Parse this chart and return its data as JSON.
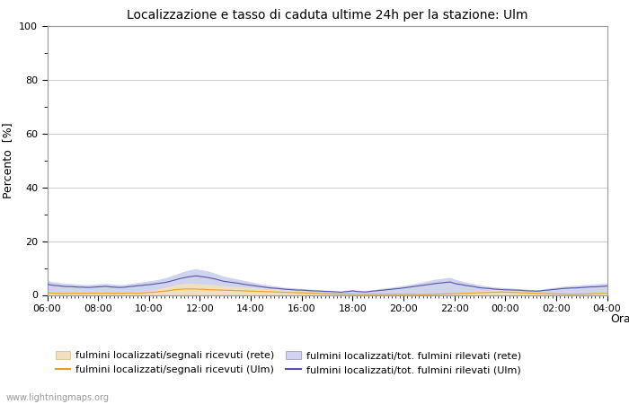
{
  "title": "Localizzazione e tasso di caduta ultime 24h per la stazione: Ulm",
  "xlabel": "Orario",
  "ylabel": "Percento  [%]",
  "ylim": [
    0,
    100
  ],
  "yticks": [
    0,
    20,
    40,
    60,
    80,
    100
  ],
  "yticks_minor": [
    10,
    30,
    50,
    70,
    90
  ],
  "x_labels": [
    "06:00",
    "08:00",
    "10:00",
    "12:00",
    "14:00",
    "16:00",
    "18:00",
    "20:00",
    "22:00",
    "00:00",
    "02:00",
    "04:00"
  ],
  "n_points": 144,
  "color_fill_rete": "#f0dfc0",
  "color_fill_rete_edge": "#d4b87a",
  "color_fill_blue": "#cfd3ee",
  "color_fill_blue_edge": "#9090cc",
  "color_line_orange": "#e8a020",
  "color_line_blue": "#5555aa",
  "background_color": "#ffffff",
  "grid_color": "#cccccc",
  "watermark": "www.lightningmaps.org",
  "legend_labels": [
    "fulmini localizzati/segnali ricevuti (rete)",
    "fulmini localizzati/segnali ricevuti (Ulm)",
    "fulmini localizzati/tot. fulmini rilevati (rete)",
    "fulmini localizzati/tot. fulmini rilevati (Ulm)"
  ],
  "fill_rete_values": [
    1.5,
    1.3,
    1.2,
    1.1,
    1.0,
    1.1,
    1.2,
    1.3,
    1.2,
    1.1,
    1.2,
    1.3,
    1.4,
    1.3,
    1.2,
    1.3,
    1.1,
    1.2,
    1.3,
    1.2,
    1.3,
    1.4,
    1.3,
    1.2,
    1.4,
    1.5,
    1.7,
    1.9,
    2.2,
    2.5,
    2.8,
    3.1,
    3.5,
    3.9,
    4.1,
    4.3,
    4.4,
    4.4,
    4.3,
    4.2,
    4.1,
    4.0,
    3.9,
    3.7,
    3.6,
    3.5,
    3.4,
    3.3,
    3.2,
    3.1,
    3.0,
    2.9,
    2.8,
    2.7,
    2.6,
    2.5,
    2.4,
    2.3,
    2.2,
    2.1,
    2.0,
    1.9,
    1.8,
    1.7,
    1.6,
    1.5,
    1.4,
    1.3,
    1.2,
    1.1,
    1.0,
    0.9,
    0.8,
    0.7,
    0.6,
    0.5,
    0.5,
    0.5,
    0.5,
    0.4,
    0.4,
    0.4,
    0.4,
    0.3,
    0.3,
    0.3,
    0.3,
    0.3,
    0.3,
    0.3,
    0.3,
    0.3,
    0.3,
    0.3,
    0.3,
    0.2,
    0.2,
    0.3,
    0.3,
    0.4,
    0.5,
    0.6,
    0.7,
    0.8,
    0.9,
    1.0,
    1.1,
    1.2,
    1.3,
    1.4,
    1.5,
    1.6,
    1.7,
    1.8,
    1.9,
    2.0,
    2.1,
    2.0,
    1.9,
    1.8,
    1.7,
    1.6,
    1.5,
    1.4,
    1.3,
    1.2,
    1.1,
    1.0,
    0.9,
    0.8,
    0.7,
    0.6,
    0.5,
    0.4,
    0.3,
    0.4,
    0.5,
    0.6,
    0.7,
    0.8,
    0.9,
    1.0,
    1.1,
    1.2
  ],
  "fill_blue_values": [
    5.5,
    5.0,
    4.8,
    4.6,
    4.4,
    4.3,
    4.2,
    4.1,
    4.0,
    3.9,
    3.8,
    3.9,
    4.0,
    4.1,
    4.2,
    4.3,
    4.1,
    4.0,
    3.9,
    3.8,
    4.0,
    4.2,
    4.4,
    4.6,
    4.8,
    5.0,
    5.2,
    5.4,
    5.7,
    6.0,
    6.3,
    6.7,
    7.2,
    7.8,
    8.3,
    8.8,
    9.2,
    9.5,
    9.7,
    9.5,
    9.2,
    8.9,
    8.5,
    8.0,
    7.5,
    7.0,
    6.7,
    6.4,
    6.1,
    5.8,
    5.5,
    5.2,
    4.9,
    4.6,
    4.3,
    4.0,
    3.8,
    3.6,
    3.4,
    3.2,
    3.0,
    2.8,
    2.7,
    2.6,
    2.5,
    2.4,
    2.3,
    2.2,
    2.1,
    2.0,
    1.9,
    1.8,
    1.7,
    1.6,
    1.5,
    1.4,
    1.6,
    1.8,
    2.0,
    1.8,
    1.6,
    1.5,
    1.7,
    1.9,
    2.1,
    2.3,
    2.5,
    2.7,
    2.9,
    3.1,
    3.3,
    3.5,
    3.8,
    4.0,
    4.3,
    4.6,
    4.9,
    5.2,
    5.5,
    5.8,
    6.0,
    6.2,
    6.4,
    6.5,
    5.9,
    5.5,
    5.1,
    4.8,
    4.5,
    4.2,
    3.9,
    3.6,
    3.4,
    3.2,
    3.0,
    2.9,
    2.8,
    2.7,
    2.6,
    2.5,
    2.4,
    2.3,
    2.2,
    2.1,
    2.0,
    1.9,
    2.1,
    2.3,
    2.5,
    2.7,
    2.9,
    3.1,
    3.3,
    3.4,
    3.5,
    3.6,
    3.7,
    3.8,
    3.9,
    4.0,
    4.1,
    4.2,
    4.3,
    4.4
  ],
  "line_orange_values": [
    0.8,
    0.7,
    0.6,
    0.6,
    0.5,
    0.6,
    0.6,
    0.7,
    0.6,
    0.6,
    0.6,
    0.7,
    0.7,
    0.7,
    0.6,
    0.7,
    0.6,
    0.6,
    0.7,
    0.6,
    0.7,
    0.7,
    0.7,
    0.6,
    0.7,
    0.8,
    0.9,
    1.0,
    1.1,
    1.3,
    1.4,
    1.6,
    1.8,
    2.0,
    2.1,
    2.2,
    2.2,
    2.2,
    2.2,
    2.1,
    2.1,
    2.0,
    1.9,
    1.9,
    1.8,
    1.8,
    1.7,
    1.7,
    1.6,
    1.6,
    1.5,
    1.5,
    1.4,
    1.4,
    1.3,
    1.3,
    1.2,
    1.2,
    1.1,
    1.1,
    1.0,
    1.0,
    0.9,
    0.9,
    0.8,
    0.8,
    0.7,
    0.7,
    0.6,
    0.6,
    0.5,
    0.5,
    0.4,
    0.4,
    0.3,
    0.3,
    0.3,
    0.3,
    0.3,
    0.2,
    0.2,
    0.2,
    0.2,
    0.2,
    0.2,
    0.2,
    0.2,
    0.2,
    0.2,
    0.2,
    0.2,
    0.2,
    0.2,
    0.2,
    0.2,
    0.1,
    0.1,
    0.2,
    0.2,
    0.2,
    0.3,
    0.3,
    0.4,
    0.4,
    0.5,
    0.5,
    0.6,
    0.6,
    0.7,
    0.7,
    0.8,
    0.8,
    0.9,
    0.9,
    1.0,
    1.0,
    1.1,
    1.0,
    1.0,
    0.9,
    0.9,
    0.8,
    0.8,
    0.7,
    0.7,
    0.6,
    0.6,
    0.5,
    0.5,
    0.4,
    0.4,
    0.3,
    0.3,
    0.2,
    0.2,
    0.2,
    0.3,
    0.3,
    0.4,
    0.4,
    0.5,
    0.5,
    0.6,
    0.6
  ],
  "line_blue_values": [
    4.0,
    3.7,
    3.5,
    3.4,
    3.2,
    3.1,
    3.1,
    3.0,
    2.9,
    2.9,
    2.8,
    2.8,
    2.9,
    3.0,
    3.1,
    3.2,
    3.0,
    2.9,
    2.8,
    2.8,
    2.9,
    3.1,
    3.2,
    3.4,
    3.5,
    3.7,
    3.8,
    4.0,
    4.2,
    4.4,
    4.6,
    4.9,
    5.3,
    5.7,
    6.1,
    6.4,
    6.7,
    6.9,
    7.1,
    6.9,
    6.7,
    6.5,
    6.2,
    5.9,
    5.5,
    5.1,
    4.9,
    4.7,
    4.5,
    4.3,
    4.0,
    3.8,
    3.6,
    3.4,
    3.2,
    3.0,
    2.8,
    2.6,
    2.5,
    2.4,
    2.2,
    2.1,
    2.0,
    1.9,
    1.8,
    1.8,
    1.7,
    1.6,
    1.5,
    1.5,
    1.4,
    1.3,
    1.3,
    1.2,
    1.1,
    1.0,
    1.2,
    1.3,
    1.5,
    1.3,
    1.2,
    1.1,
    1.2,
    1.4,
    1.5,
    1.7,
    1.8,
    2.0,
    2.1,
    2.3,
    2.4,
    2.6,
    2.8,
    3.0,
    3.2,
    3.4,
    3.6,
    3.8,
    4.0,
    4.2,
    4.4,
    4.5,
    4.7,
    4.8,
    4.3,
    4.0,
    3.8,
    3.5,
    3.3,
    3.1,
    2.8,
    2.6,
    2.5,
    2.4,
    2.2,
    2.1,
    2.0,
    1.9,
    1.9,
    1.8,
    1.8,
    1.7,
    1.6,
    1.5,
    1.5,
    1.4,
    1.5,
    1.7,
    1.8,
    2.0,
    2.1,
    2.3,
    2.4,
    2.5,
    2.6,
    2.6,
    2.7,
    2.8,
    2.9,
    3.0,
    3.0,
    3.1,
    3.2,
    3.3
  ]
}
